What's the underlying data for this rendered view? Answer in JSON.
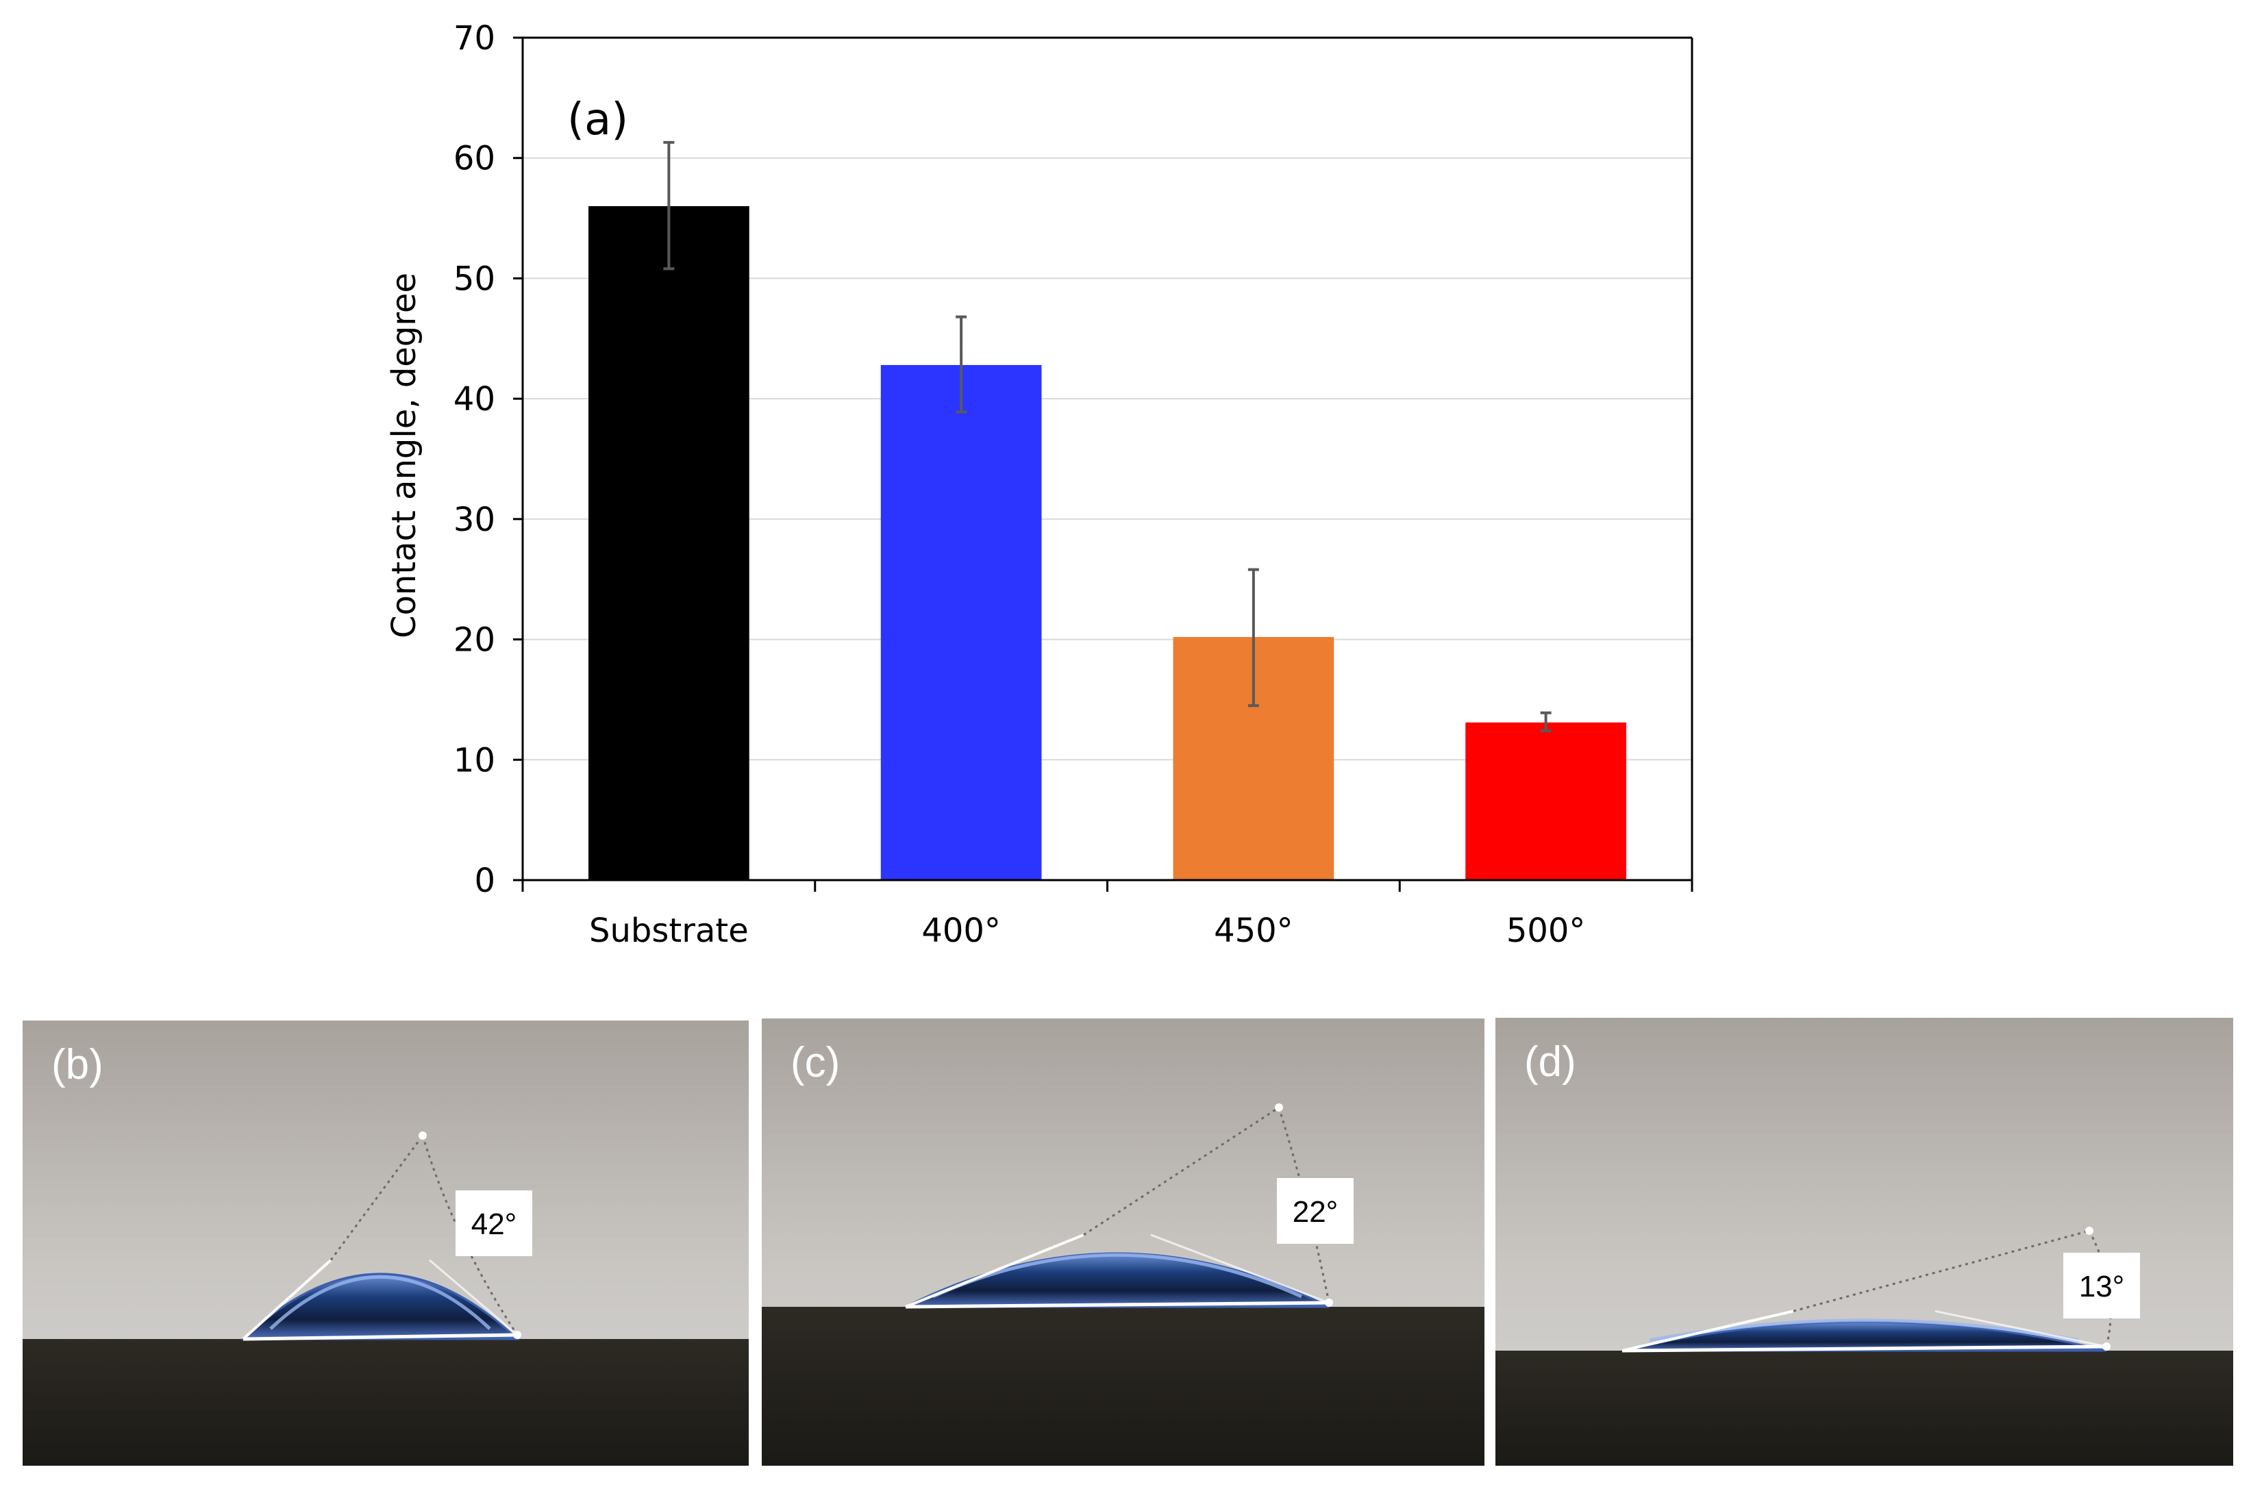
{
  "chart_data": {
    "type": "bar",
    "panel_label": "(a)",
    "title": "",
    "xlabel": "",
    "ylabel": "Contact angle, degree",
    "categories": [
      "Substrate",
      "400°",
      "450°",
      "500°"
    ],
    "values": [
      56,
      42.8,
      20.2,
      13.1
    ],
    "error_low": [
      50.8,
      38.9,
      14.5,
      12.4
    ],
    "error_high": [
      61.3,
      46.8,
      25.8,
      13.9
    ],
    "colors": [
      "#000000",
      "#2b35ff",
      "#ed7d31",
      "#ff0000"
    ],
    "ylim": [
      0,
      70
    ],
    "yticks": [
      "0",
      "10",
      "20",
      "30",
      "40",
      "50",
      "60",
      "70"
    ],
    "ytick_values": [
      0,
      10,
      20,
      30,
      40,
      50,
      60,
      70
    ],
    "grid": true
  },
  "photos": [
    {
      "label": "(b)",
      "angle_label": "42°",
      "angle": 42
    },
    {
      "label": "(c)",
      "angle_label": "22°",
      "angle": 22
    },
    {
      "label": "(d)",
      "angle_label": "13°",
      "angle": 13
    }
  ]
}
